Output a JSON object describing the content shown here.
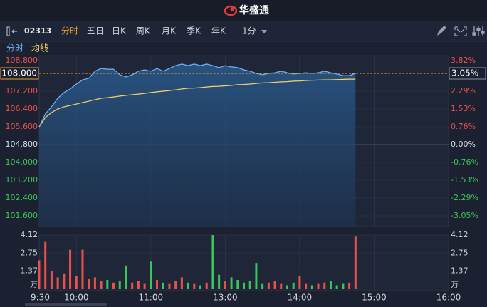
{
  "header": {
    "app_name": "华盛通"
  },
  "toolbar": {
    "symbol": "02313",
    "tabs": [
      "分时",
      "五日",
      "日K",
      "周K",
      "月K",
      "季K",
      "年K"
    ],
    "active_tab": 0,
    "interval": "1分"
  },
  "chart_data": [
    {
      "type": "line",
      "x": [
        "9:30",
        "9:35",
        "9:40",
        "9:45",
        "9:50",
        "9:55",
        "10:00",
        "10:05",
        "10:10",
        "10:15",
        "10:20",
        "10:25",
        "10:30",
        "10:35",
        "10:40",
        "10:45",
        "10:50",
        "10:55",
        "11:00",
        "11:05",
        "11:10",
        "11:15",
        "11:20",
        "11:25",
        "11:30",
        "11:35",
        "11:40",
        "11:45",
        "11:50",
        "11:55",
        "12:00",
        "13:05",
        "13:10",
        "13:15",
        "13:20",
        "13:25",
        "13:30",
        "13:35",
        "13:40",
        "13:45",
        "13:50",
        "13:55",
        "14:00",
        "14:05",
        "14:10",
        "14:15",
        "14:20",
        "14:25",
        "14:30",
        "14:35",
        "14:40",
        "14:45"
      ],
      "series": [
        {
          "name": "分时",
          "color": "#6fb4ff",
          "values": [
            105.6,
            106.18,
            106.5,
            106.88,
            107.14,
            107.3,
            107.52,
            107.71,
            107.78,
            108.1,
            108.22,
            108.19,
            108.19,
            107.94,
            107.84,
            107.94,
            108.1,
            108.16,
            108.1,
            108.22,
            108.1,
            108.22,
            108.35,
            108.42,
            108.35,
            108.42,
            108.35,
            108.42,
            108.35,
            108.26,
            108.35,
            108.29,
            108.26,
            108.16,
            108.1,
            108.0,
            107.94,
            108.0,
            108.03,
            108.1,
            108.03,
            107.97,
            108.0,
            108.03,
            108.0,
            108.03,
            108.1,
            108.03,
            107.97,
            107.9,
            107.9,
            108.0
          ]
        },
        {
          "name": "均线",
          "color": "#f3d46b",
          "values": [
            105.6,
            106.02,
            106.24,
            106.4,
            106.5,
            106.56,
            106.62,
            106.69,
            106.75,
            106.82,
            106.88,
            106.91,
            106.94,
            106.98,
            107.01,
            107.04,
            107.07,
            107.1,
            107.14,
            107.17,
            107.2,
            107.23,
            107.26,
            107.3,
            107.33,
            107.34,
            107.36,
            107.39,
            107.41,
            107.42,
            107.44,
            107.46,
            107.49,
            107.5,
            107.52,
            107.55,
            107.57,
            107.58,
            107.6,
            107.62,
            107.63,
            107.65,
            107.66,
            107.68,
            107.69,
            107.7,
            107.71,
            107.71,
            107.72,
            107.73,
            107.74,
            107.74
          ]
        }
      ],
      "xlim": [
        "9:30",
        "16:00"
      ],
      "xticks": [
        "9:30",
        "10:00",
        "11:00",
        "13:00",
        "14:00",
        "15:00",
        "16:00"
      ],
      "ylim": [
        101.6,
        108.8
      ],
      "yticks": [
        {
          "value": 108.8,
          "label": "108.800"
        },
        {
          "value": 107.2,
          "label": "107.200"
        },
        {
          "value": 106.4,
          "label": "106.400"
        },
        {
          "value": 105.6,
          "label": "105.600"
        },
        {
          "value": 104.8,
          "label": "104.800"
        },
        {
          "value": 104.0,
          "label": "104.000"
        },
        {
          "value": 103.2,
          "label": "103.200"
        },
        {
          "value": 102.4,
          "label": "102.400"
        },
        {
          "value": 101.6,
          "label": "101.600"
        }
      ],
      "y2lim": [
        -3.05,
        3.82
      ],
      "y2ticks": [
        {
          "value": 3.82,
          "label": "3.82%"
        },
        {
          "value": 2.29,
          "label": "2.29%"
        },
        {
          "value": 1.53,
          "label": "1.53%"
        },
        {
          "value": 0.76,
          "label": "0.76%"
        },
        {
          "value": 0,
          "label": "0.00%"
        },
        {
          "value": -0.76,
          "label": "-0.76%"
        },
        {
          "value": -1.53,
          "label": "-1.53%"
        },
        {
          "value": -2.29,
          "label": "-2.29%"
        },
        {
          "value": -3.05,
          "label": "-3.05%"
        }
      ],
      "last_price": {
        "value": 108.0,
        "label": "108.000"
      },
      "last_change": {
        "value": 3.05,
        "label": "3.05%"
      },
      "up_color": "#e8524a",
      "down_color": "#3bc45a",
      "flat_color": "#d8dde6",
      "last_color": "#f0a030"
    },
    {
      "type": "bar",
      "values": [
        2.2,
        3.6,
        1.4,
        0.9,
        1.2,
        3.0,
        1.0,
        3.0,
        0.8,
        0.9,
        0.6,
        0.7,
        0.5,
        0.6,
        1.8,
        0.5,
        0.6,
        0.4,
        2.1,
        0.7,
        0.5,
        0.4,
        0.6,
        0.9,
        0.5,
        0.4,
        0.3,
        0.5,
        4.12,
        1.1,
        0.6,
        0.9,
        0.7,
        0.5,
        0.6,
        2.0,
        0.4,
        0.5,
        0.6,
        0.4,
        0.3,
        0.5,
        1.0,
        0.4,
        0.3,
        0.4,
        0.5,
        0.6,
        0.3,
        0.4,
        0.5,
        4.0
      ],
      "ylim": [
        0,
        4.12
      ],
      "yticks": [
        4.12,
        2.75,
        1.37
      ],
      "unit": "万"
    }
  ]
}
